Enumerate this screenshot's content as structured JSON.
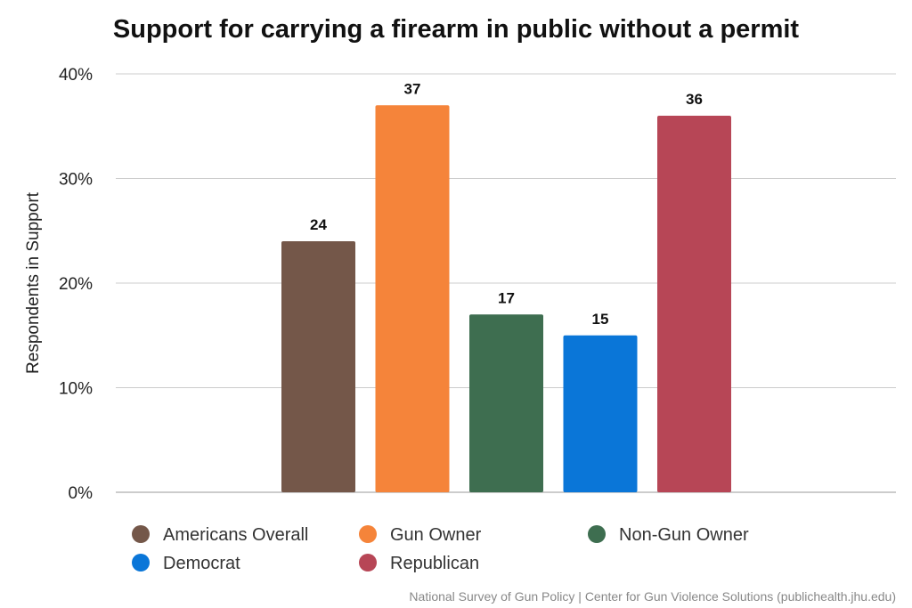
{
  "chart_data": {
    "type": "bar",
    "title": "Support for carrying a firearm in public without a permit",
    "xlabel": "",
    "ylabel": "Respondents in Support",
    "ylim": [
      0,
      40
    ],
    "yticks": [
      0,
      10,
      20,
      30,
      40
    ],
    "ytick_labels": [
      "0%",
      "10%",
      "20%",
      "30%",
      "40%"
    ],
    "grid": true,
    "legend_position": "bottom",
    "categories": [
      "Americans Overall",
      "Gun Owner",
      "Non-Gun Owner",
      "Democrat",
      "Republican"
    ],
    "values": [
      24,
      37,
      17,
      15,
      36
    ],
    "data_labels": [
      "24",
      "37",
      "17",
      "15",
      "36"
    ],
    "colors": [
      "#745749",
      "#f5843a",
      "#3e6e50",
      "#0a76d8",
      "#b74656"
    ],
    "source": "National Survey of Gun Policy | Center for Gun Violence Solutions (publichealth.jhu.edu)"
  }
}
